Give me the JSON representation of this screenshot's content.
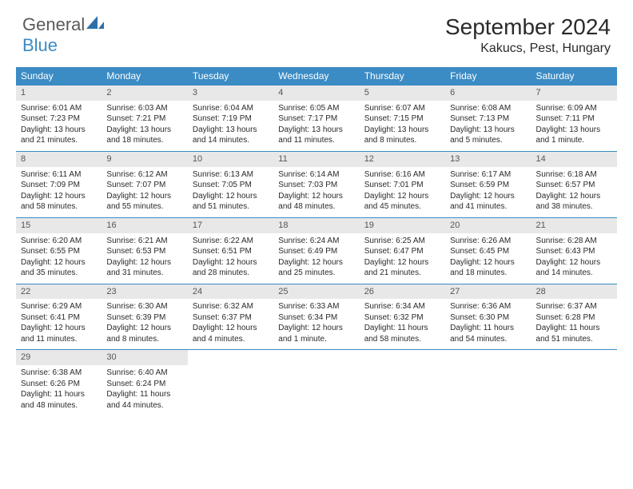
{
  "brand": {
    "part1": "General",
    "part2": "Blue"
  },
  "title": "September 2024",
  "location": "Kakucs, Pest, Hungary",
  "colors": {
    "header_bg": "#3b8bc4",
    "header_text": "#ffffff",
    "daynum_bg": "#e8e8e8",
    "text": "#2a2a2a",
    "row_border": "#3b8bc4"
  },
  "weekdays": [
    "Sunday",
    "Monday",
    "Tuesday",
    "Wednesday",
    "Thursday",
    "Friday",
    "Saturday"
  ],
  "weeks": [
    [
      {
        "n": "1",
        "sr": "Sunrise: 6:01 AM",
        "ss": "Sunset: 7:23 PM",
        "d1": "Daylight: 13 hours",
        "d2": "and 21 minutes."
      },
      {
        "n": "2",
        "sr": "Sunrise: 6:03 AM",
        "ss": "Sunset: 7:21 PM",
        "d1": "Daylight: 13 hours",
        "d2": "and 18 minutes."
      },
      {
        "n": "3",
        "sr": "Sunrise: 6:04 AM",
        "ss": "Sunset: 7:19 PM",
        "d1": "Daylight: 13 hours",
        "d2": "and 14 minutes."
      },
      {
        "n": "4",
        "sr": "Sunrise: 6:05 AM",
        "ss": "Sunset: 7:17 PM",
        "d1": "Daylight: 13 hours",
        "d2": "and 11 minutes."
      },
      {
        "n": "5",
        "sr": "Sunrise: 6:07 AM",
        "ss": "Sunset: 7:15 PM",
        "d1": "Daylight: 13 hours",
        "d2": "and 8 minutes."
      },
      {
        "n": "6",
        "sr": "Sunrise: 6:08 AM",
        "ss": "Sunset: 7:13 PM",
        "d1": "Daylight: 13 hours",
        "d2": "and 5 minutes."
      },
      {
        "n": "7",
        "sr": "Sunrise: 6:09 AM",
        "ss": "Sunset: 7:11 PM",
        "d1": "Daylight: 13 hours",
        "d2": "and 1 minute."
      }
    ],
    [
      {
        "n": "8",
        "sr": "Sunrise: 6:11 AM",
        "ss": "Sunset: 7:09 PM",
        "d1": "Daylight: 12 hours",
        "d2": "and 58 minutes."
      },
      {
        "n": "9",
        "sr": "Sunrise: 6:12 AM",
        "ss": "Sunset: 7:07 PM",
        "d1": "Daylight: 12 hours",
        "d2": "and 55 minutes."
      },
      {
        "n": "10",
        "sr": "Sunrise: 6:13 AM",
        "ss": "Sunset: 7:05 PM",
        "d1": "Daylight: 12 hours",
        "d2": "and 51 minutes."
      },
      {
        "n": "11",
        "sr": "Sunrise: 6:14 AM",
        "ss": "Sunset: 7:03 PM",
        "d1": "Daylight: 12 hours",
        "d2": "and 48 minutes."
      },
      {
        "n": "12",
        "sr": "Sunrise: 6:16 AM",
        "ss": "Sunset: 7:01 PM",
        "d1": "Daylight: 12 hours",
        "d2": "and 45 minutes."
      },
      {
        "n": "13",
        "sr": "Sunrise: 6:17 AM",
        "ss": "Sunset: 6:59 PM",
        "d1": "Daylight: 12 hours",
        "d2": "and 41 minutes."
      },
      {
        "n": "14",
        "sr": "Sunrise: 6:18 AM",
        "ss": "Sunset: 6:57 PM",
        "d1": "Daylight: 12 hours",
        "d2": "and 38 minutes."
      }
    ],
    [
      {
        "n": "15",
        "sr": "Sunrise: 6:20 AM",
        "ss": "Sunset: 6:55 PM",
        "d1": "Daylight: 12 hours",
        "d2": "and 35 minutes."
      },
      {
        "n": "16",
        "sr": "Sunrise: 6:21 AM",
        "ss": "Sunset: 6:53 PM",
        "d1": "Daylight: 12 hours",
        "d2": "and 31 minutes."
      },
      {
        "n": "17",
        "sr": "Sunrise: 6:22 AM",
        "ss": "Sunset: 6:51 PM",
        "d1": "Daylight: 12 hours",
        "d2": "and 28 minutes."
      },
      {
        "n": "18",
        "sr": "Sunrise: 6:24 AM",
        "ss": "Sunset: 6:49 PM",
        "d1": "Daylight: 12 hours",
        "d2": "and 25 minutes."
      },
      {
        "n": "19",
        "sr": "Sunrise: 6:25 AM",
        "ss": "Sunset: 6:47 PM",
        "d1": "Daylight: 12 hours",
        "d2": "and 21 minutes."
      },
      {
        "n": "20",
        "sr": "Sunrise: 6:26 AM",
        "ss": "Sunset: 6:45 PM",
        "d1": "Daylight: 12 hours",
        "d2": "and 18 minutes."
      },
      {
        "n": "21",
        "sr": "Sunrise: 6:28 AM",
        "ss": "Sunset: 6:43 PM",
        "d1": "Daylight: 12 hours",
        "d2": "and 14 minutes."
      }
    ],
    [
      {
        "n": "22",
        "sr": "Sunrise: 6:29 AM",
        "ss": "Sunset: 6:41 PM",
        "d1": "Daylight: 12 hours",
        "d2": "and 11 minutes."
      },
      {
        "n": "23",
        "sr": "Sunrise: 6:30 AM",
        "ss": "Sunset: 6:39 PM",
        "d1": "Daylight: 12 hours",
        "d2": "and 8 minutes."
      },
      {
        "n": "24",
        "sr": "Sunrise: 6:32 AM",
        "ss": "Sunset: 6:37 PM",
        "d1": "Daylight: 12 hours",
        "d2": "and 4 minutes."
      },
      {
        "n": "25",
        "sr": "Sunrise: 6:33 AM",
        "ss": "Sunset: 6:34 PM",
        "d1": "Daylight: 12 hours",
        "d2": "and 1 minute."
      },
      {
        "n": "26",
        "sr": "Sunrise: 6:34 AM",
        "ss": "Sunset: 6:32 PM",
        "d1": "Daylight: 11 hours",
        "d2": "and 58 minutes."
      },
      {
        "n": "27",
        "sr": "Sunrise: 6:36 AM",
        "ss": "Sunset: 6:30 PM",
        "d1": "Daylight: 11 hours",
        "d2": "and 54 minutes."
      },
      {
        "n": "28",
        "sr": "Sunrise: 6:37 AM",
        "ss": "Sunset: 6:28 PM",
        "d1": "Daylight: 11 hours",
        "d2": "and 51 minutes."
      }
    ],
    [
      {
        "n": "29",
        "sr": "Sunrise: 6:38 AM",
        "ss": "Sunset: 6:26 PM",
        "d1": "Daylight: 11 hours",
        "d2": "and 48 minutes."
      },
      {
        "n": "30",
        "sr": "Sunrise: 6:40 AM",
        "ss": "Sunset: 6:24 PM",
        "d1": "Daylight: 11 hours",
        "d2": "and 44 minutes."
      },
      null,
      null,
      null,
      null,
      null
    ]
  ]
}
